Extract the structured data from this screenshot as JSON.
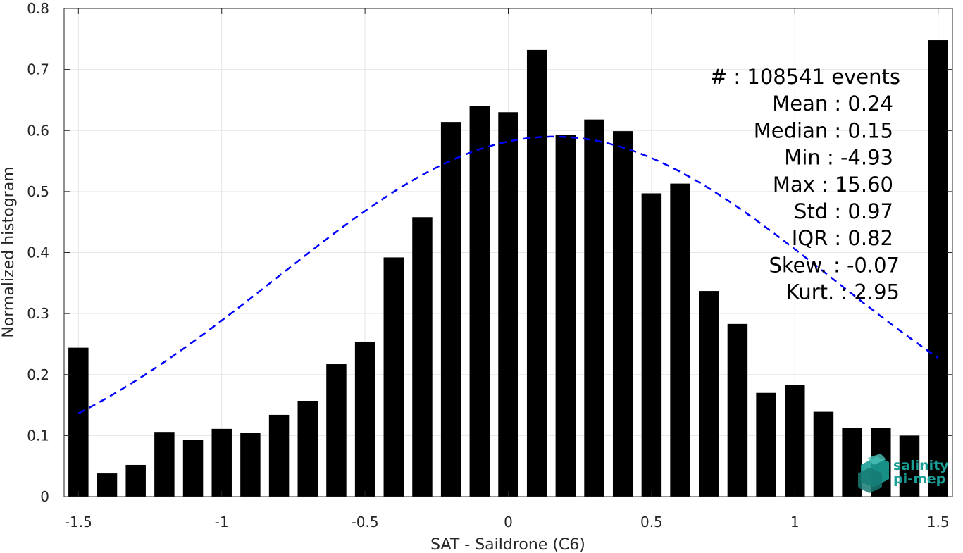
{
  "chart_data": {
    "type": "bar",
    "xlabel": "SAT - Saildrone (C6)",
    "ylabel": "Normalized histogram",
    "xlim": [
      -1.55,
      1.55
    ],
    "ylim": [
      0,
      0.8
    ],
    "xticks": [
      -1.5,
      -1,
      -0.5,
      0,
      0.5,
      1,
      1.5
    ],
    "xtick_labels": [
      "-1.5",
      "-1",
      "-0.5",
      "0",
      "0.5",
      "1",
      "1.5"
    ],
    "yticks": [
      0,
      0.1,
      0.2,
      0.3,
      0.4,
      0.5,
      0.6,
      0.7,
      0.8
    ],
    "ytick_labels": [
      "0",
      "0.1",
      "0.2",
      "0.3",
      "0.4",
      "0.5",
      "0.6",
      "0.7",
      "0.8"
    ],
    "grid": true,
    "bar_color": "#000000",
    "bar_width": 0.07,
    "bins": [
      {
        "x": -1.5,
        "y": 0.244
      },
      {
        "x": -1.4,
        "y": 0.038
      },
      {
        "x": -1.3,
        "y": 0.052
      },
      {
        "x": -1.2,
        "y": 0.106
      },
      {
        "x": -1.1,
        "y": 0.093
      },
      {
        "x": -1.0,
        "y": 0.111
      },
      {
        "x": -0.9,
        "y": 0.105
      },
      {
        "x": -0.8,
        "y": 0.134
      },
      {
        "x": -0.7,
        "y": 0.157
      },
      {
        "x": -0.6,
        "y": 0.217
      },
      {
        "x": -0.5,
        "y": 0.254
      },
      {
        "x": -0.4,
        "y": 0.392
      },
      {
        "x": -0.3,
        "y": 0.458
      },
      {
        "x": -0.2,
        "y": 0.614
      },
      {
        "x": -0.1,
        "y": 0.64
      },
      {
        "x": 0.0,
        "y": 0.63
      },
      {
        "x": 0.1,
        "y": 0.732
      },
      {
        "x": 0.2,
        "y": 0.593
      },
      {
        "x": 0.3,
        "y": 0.618
      },
      {
        "x": 0.4,
        "y": 0.599
      },
      {
        "x": 0.5,
        "y": 0.497
      },
      {
        "x": 0.6,
        "y": 0.513
      },
      {
        "x": 0.7,
        "y": 0.337
      },
      {
        "x": 0.8,
        "y": 0.283
      },
      {
        "x": 0.9,
        "y": 0.17
      },
      {
        "x": 1.0,
        "y": 0.183
      },
      {
        "x": 1.1,
        "y": 0.139
      },
      {
        "x": 1.2,
        "y": 0.113
      },
      {
        "x": 1.3,
        "y": 0.113
      },
      {
        "x": 1.4,
        "y": 0.1
      },
      {
        "x": 1.5,
        "y": 0.748
      }
    ],
    "fit_curve": {
      "type": "gaussian",
      "color": "#0000ff",
      "style": "dashed",
      "mean": 0.16,
      "std": 0.97,
      "x_range": [
        -1.5,
        1.5
      ]
    },
    "stats": [
      "#  : 108541 events",
      "Mean : 0.24",
      "Median : 0.15",
      "Min : -4.93",
      "Max : 15.60",
      "Std : 0.97",
      "IQR : 0.82",
      "Skew. : -0.07",
      "Kurt. : 2.95"
    ]
  },
  "logo": {
    "line1": "salinity",
    "line2": "pi-mep",
    "color": "#1a9e95"
  }
}
